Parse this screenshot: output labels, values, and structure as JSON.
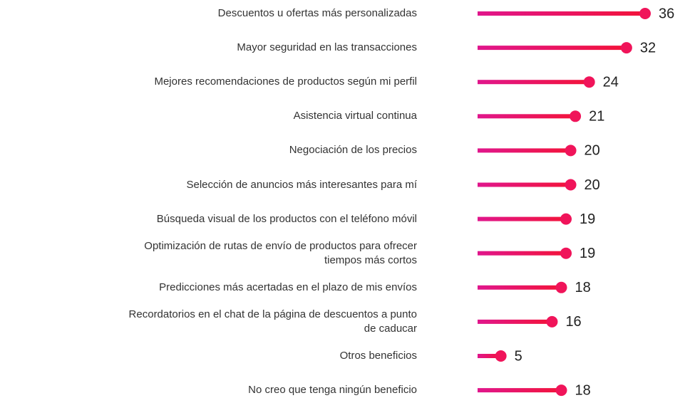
{
  "chart_data": {
    "type": "lollipop",
    "categories": [
      "Descuentos u ofertas más personalizadas",
      "Mayor seguridad en las transacciones",
      "Mejores recomendaciones de productos según mi perfil",
      "Asistencia virtual continua",
      "Negociación de los precios",
      "Selección de anuncios más interesantes para mí",
      "Búsqueda visual de los productos con el teléfono móvil",
      "Optimización de rutas de envío de productos para ofrecer\ntiempos más cortos",
      "Predicciones más acertadas en el plazo de mis envíos",
      "Recordatorios en el chat de la página de descuentos a punto\nde caducar",
      "Otros beneficios",
      "No creo que tenga ningún beneficio"
    ],
    "values": [
      36,
      32,
      24,
      21,
      20,
      20,
      19,
      19,
      18,
      16,
      5,
      18
    ],
    "color": "#f0145a"
  }
}
